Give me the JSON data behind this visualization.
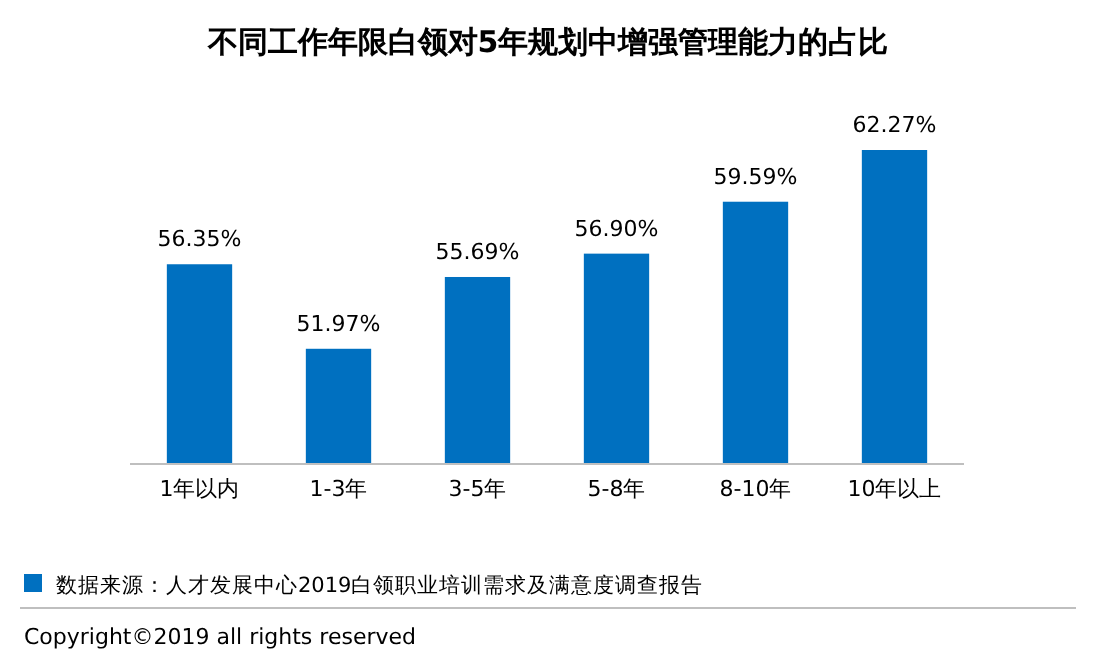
{
  "chart_data": {
    "type": "bar",
    "title": "不同工作年限白领对5年规划中增强管理能力的占比",
    "categories": [
      "1年以内",
      "1-3年",
      "3-5年",
      "5-8年",
      "8-10年",
      "10年以上"
    ],
    "values": [
      56.35,
      51.97,
      55.69,
      56.9,
      59.59,
      62.27
    ],
    "value_labels": [
      "56.35%",
      "51.97%",
      "55.69%",
      "56.90%",
      "59.59%",
      "62.27%"
    ],
    "color": "#0070c0",
    "ylim": [
      46,
      62.27
    ],
    "annotations": [
      "数据来源：人才发展中心2019白领职业培训需求及满意度调查报告",
      "Copyright©2019 all rights reserved"
    ]
  }
}
